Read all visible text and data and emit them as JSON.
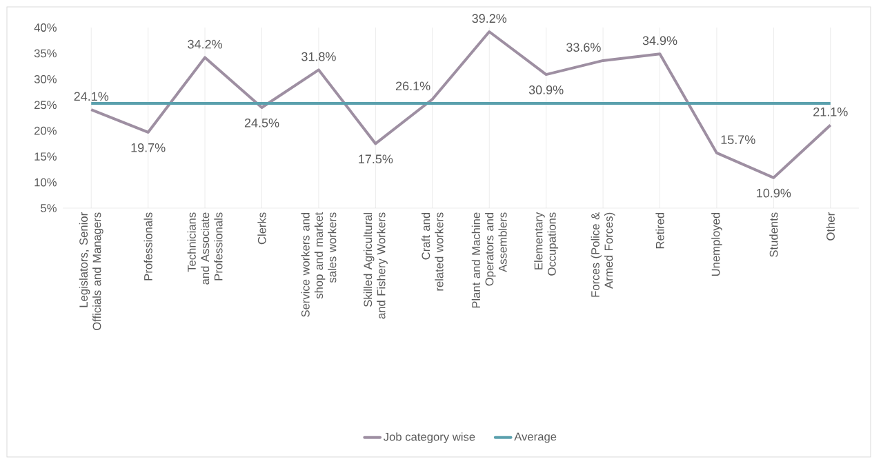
{
  "chart_data": {
    "type": "line",
    "categories": [
      "Legislators, Senior Officials and Managers",
      "Professionals",
      "Technicians and Associate Professionals",
      "Clerks",
      "Service workers and shop and market sales workers",
      "Skilled Agricultural and Fishery Workers",
      "Craft and related workers",
      "Plant and Machine Operators and Assemblers",
      "Elementary Occupations",
      "Forces (Police & Armed Forces)",
      "Retired",
      "Unemployed",
      "Students",
      "Other"
    ],
    "series": [
      {
        "name": "Job category wise",
        "color": "#9e8fa2",
        "values": [
          24.1,
          19.7,
          34.2,
          24.5,
          31.8,
          17.5,
          26.1,
          39.2,
          30.9,
          33.6,
          34.9,
          15.7,
          10.9,
          21.1
        ],
        "value_labels": [
          "24.1%",
          "19.7%",
          "34.2%",
          "24.5%",
          "31.8%",
          "17.5%",
          "26.1%",
          "39.2%",
          "30.9%",
          "33.6%",
          "34.9%",
          "15.7%",
          "10.9%",
          "21.1%"
        ]
      },
      {
        "name": "Average",
        "color": "#5aa0ad",
        "values": [
          25.3,
          25.3,
          25.3,
          25.3,
          25.3,
          25.3,
          25.3,
          25.3,
          25.3,
          25.3,
          25.3,
          25.3,
          25.3,
          25.3
        ]
      }
    ],
    "ylim": [
      5,
      40
    ],
    "yticks": [
      {
        "value": 5,
        "label": "5%"
      },
      {
        "value": 10,
        "label": "10%"
      },
      {
        "value": 15,
        "label": "15%"
      },
      {
        "value": 20,
        "label": "20%"
      },
      {
        "value": 25,
        "label": "25%"
      },
      {
        "value": 30,
        "label": "30%"
      },
      {
        "value": 35,
        "label": "35%"
      },
      {
        "value": 40,
        "label": "40%"
      }
    ],
    "grid": "x",
    "legend": "bottom"
  }
}
